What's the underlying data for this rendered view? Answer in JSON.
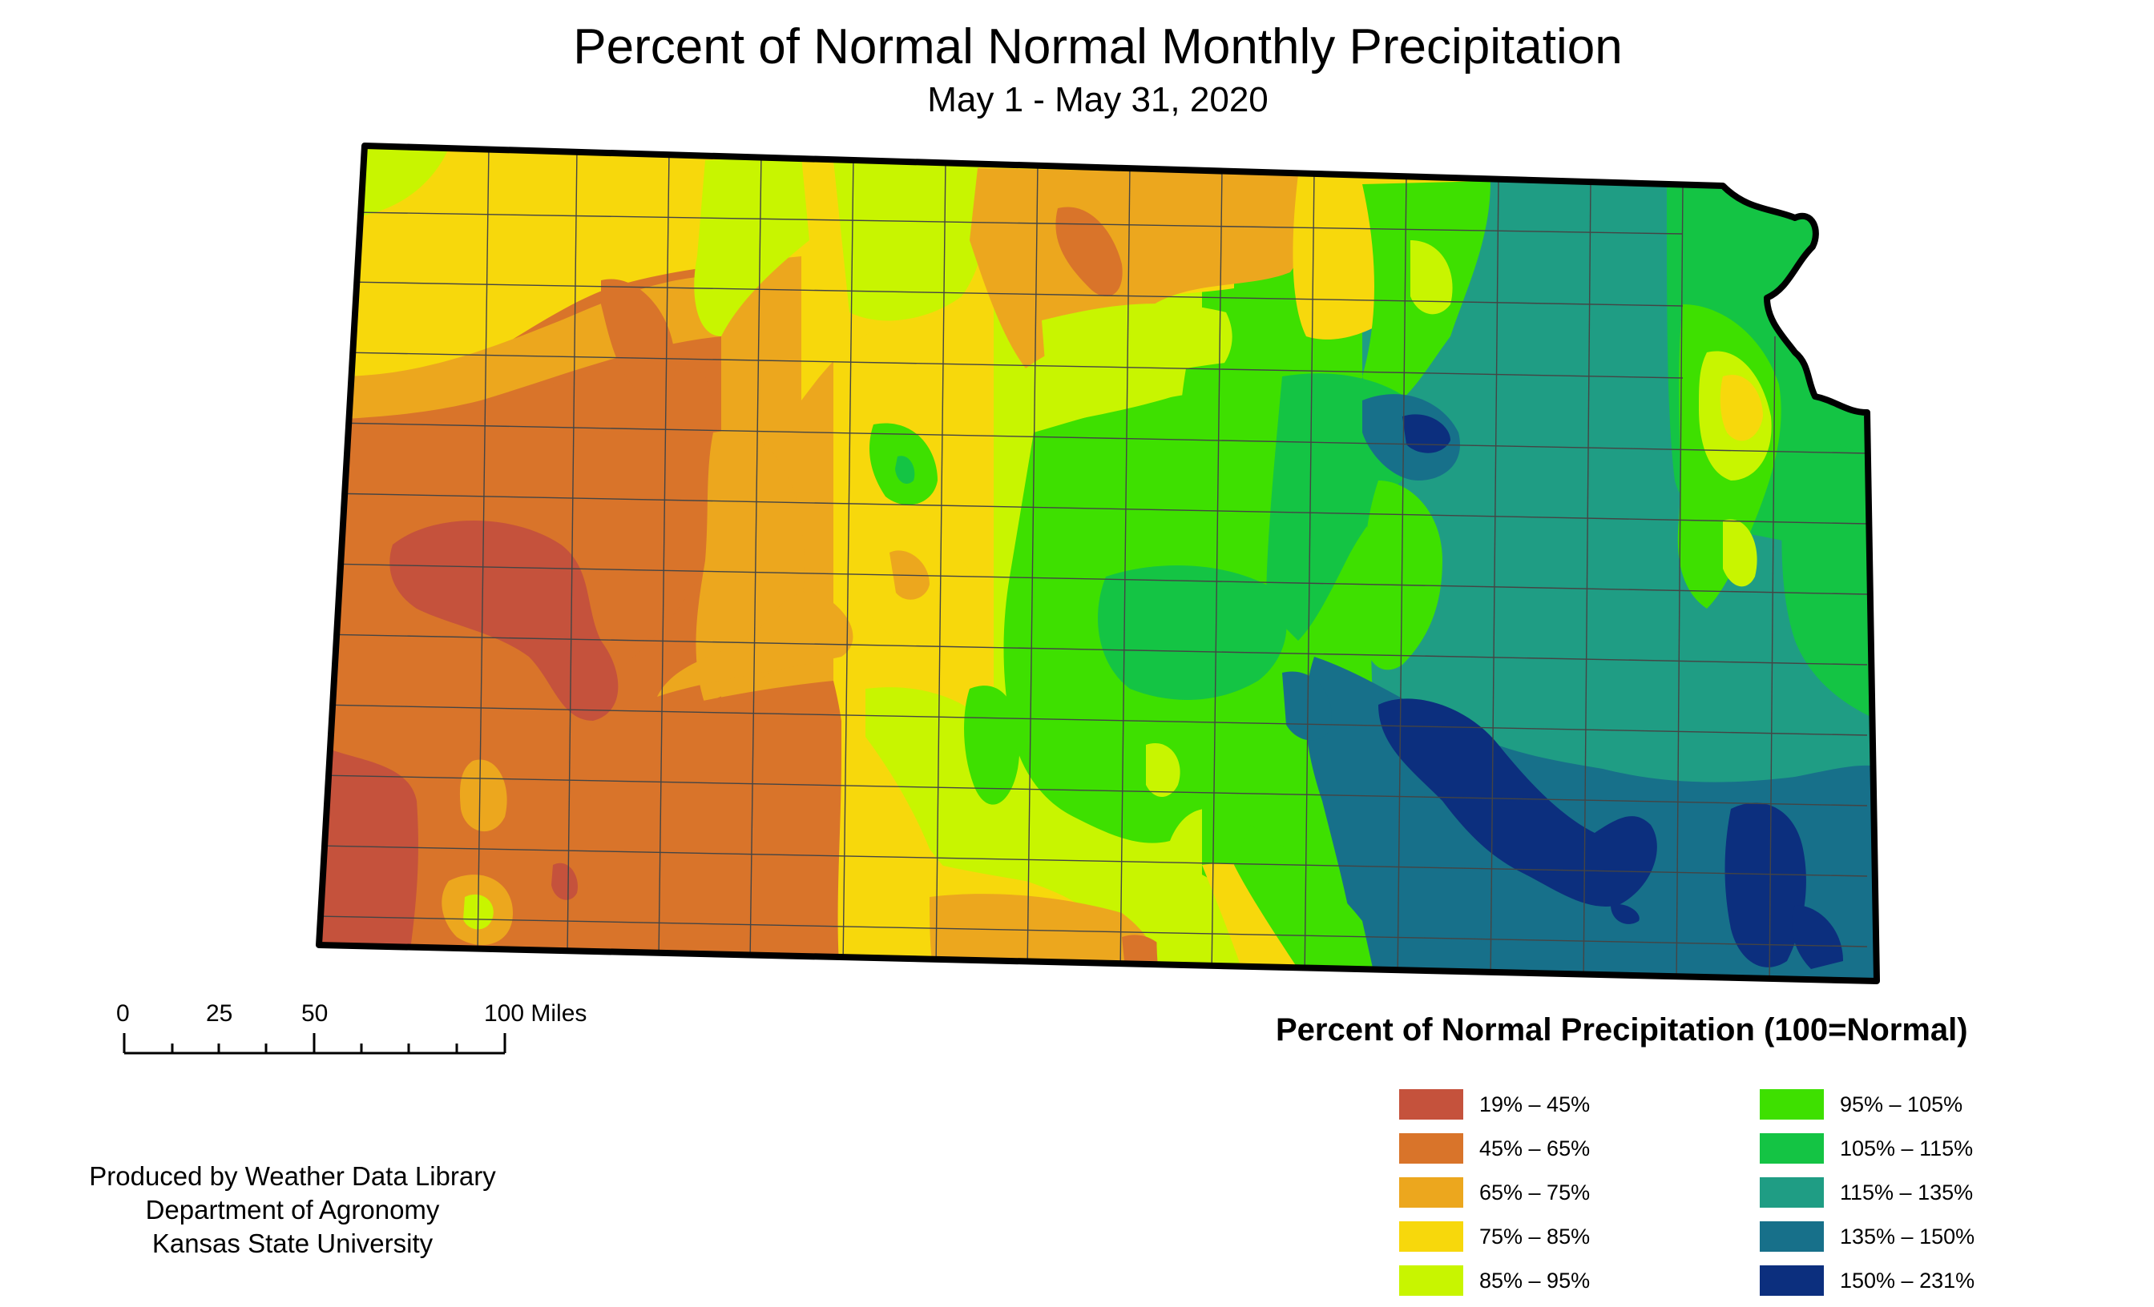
{
  "title": "Percent of Normal Normal Monthly Precipitation",
  "subtitle": "May 1 - May 31, 2020",
  "scale_bar": {
    "ticks": [
      "0",
      "25",
      "50",
      "100 Miles"
    ]
  },
  "credit": {
    "line1": "Produced by Weather Data Library",
    "line2": "Department of Agronomy",
    "line3": "Kansas State University"
  },
  "legend": {
    "title": "Percent of Normal Precipitation (100=Normal)",
    "items": [
      {
        "label": "19% – 45%",
        "color": "#c5523c"
      },
      {
        "label": "45% – 65%",
        "color": "#d9742a"
      },
      {
        "label": "65% – 75%",
        "color": "#eca71e"
      },
      {
        "label": "75% – 85%",
        "color": "#f7d80c"
      },
      {
        "label": "85% – 95%",
        "color": "#c8f500"
      },
      {
        "label": "95% – 105%",
        "color": "#3ee000"
      },
      {
        "label": "105% – 115%",
        "color": "#14c444"
      },
      {
        "label": "115% – 135%",
        "color": "#1f9d84"
      },
      {
        "label": "135% – 150%",
        "color": "#17708a"
      },
      {
        "label": "150% – 231%",
        "color": "#0c2f7e"
      }
    ]
  }
}
